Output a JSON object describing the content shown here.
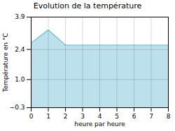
{
  "chart_data": {
    "type": "area",
    "title": "Evolution de la température",
    "xlabel": "heure par heure",
    "ylabel": "Température en °C",
    "x": [
      0,
      1,
      2,
      3,
      4,
      5,
      6,
      7,
      8
    ],
    "values": [
      2.7,
      3.3,
      2.6,
      2.6,
      2.6,
      2.6,
      2.6,
      2.6,
      2.6
    ],
    "color": "#6bbdd4",
    "xlim": [
      0,
      8
    ],
    "ylim": [
      -0.3,
      3.9
    ],
    "xticks": [
      0,
      1,
      2,
      3,
      4,
      5,
      6,
      7,
      8
    ],
    "yticks": [
      -0.3,
      {
        "value": 1.0,
        "label": "1.0"
      },
      2.4,
      3.9
    ],
    "grid": true
  }
}
